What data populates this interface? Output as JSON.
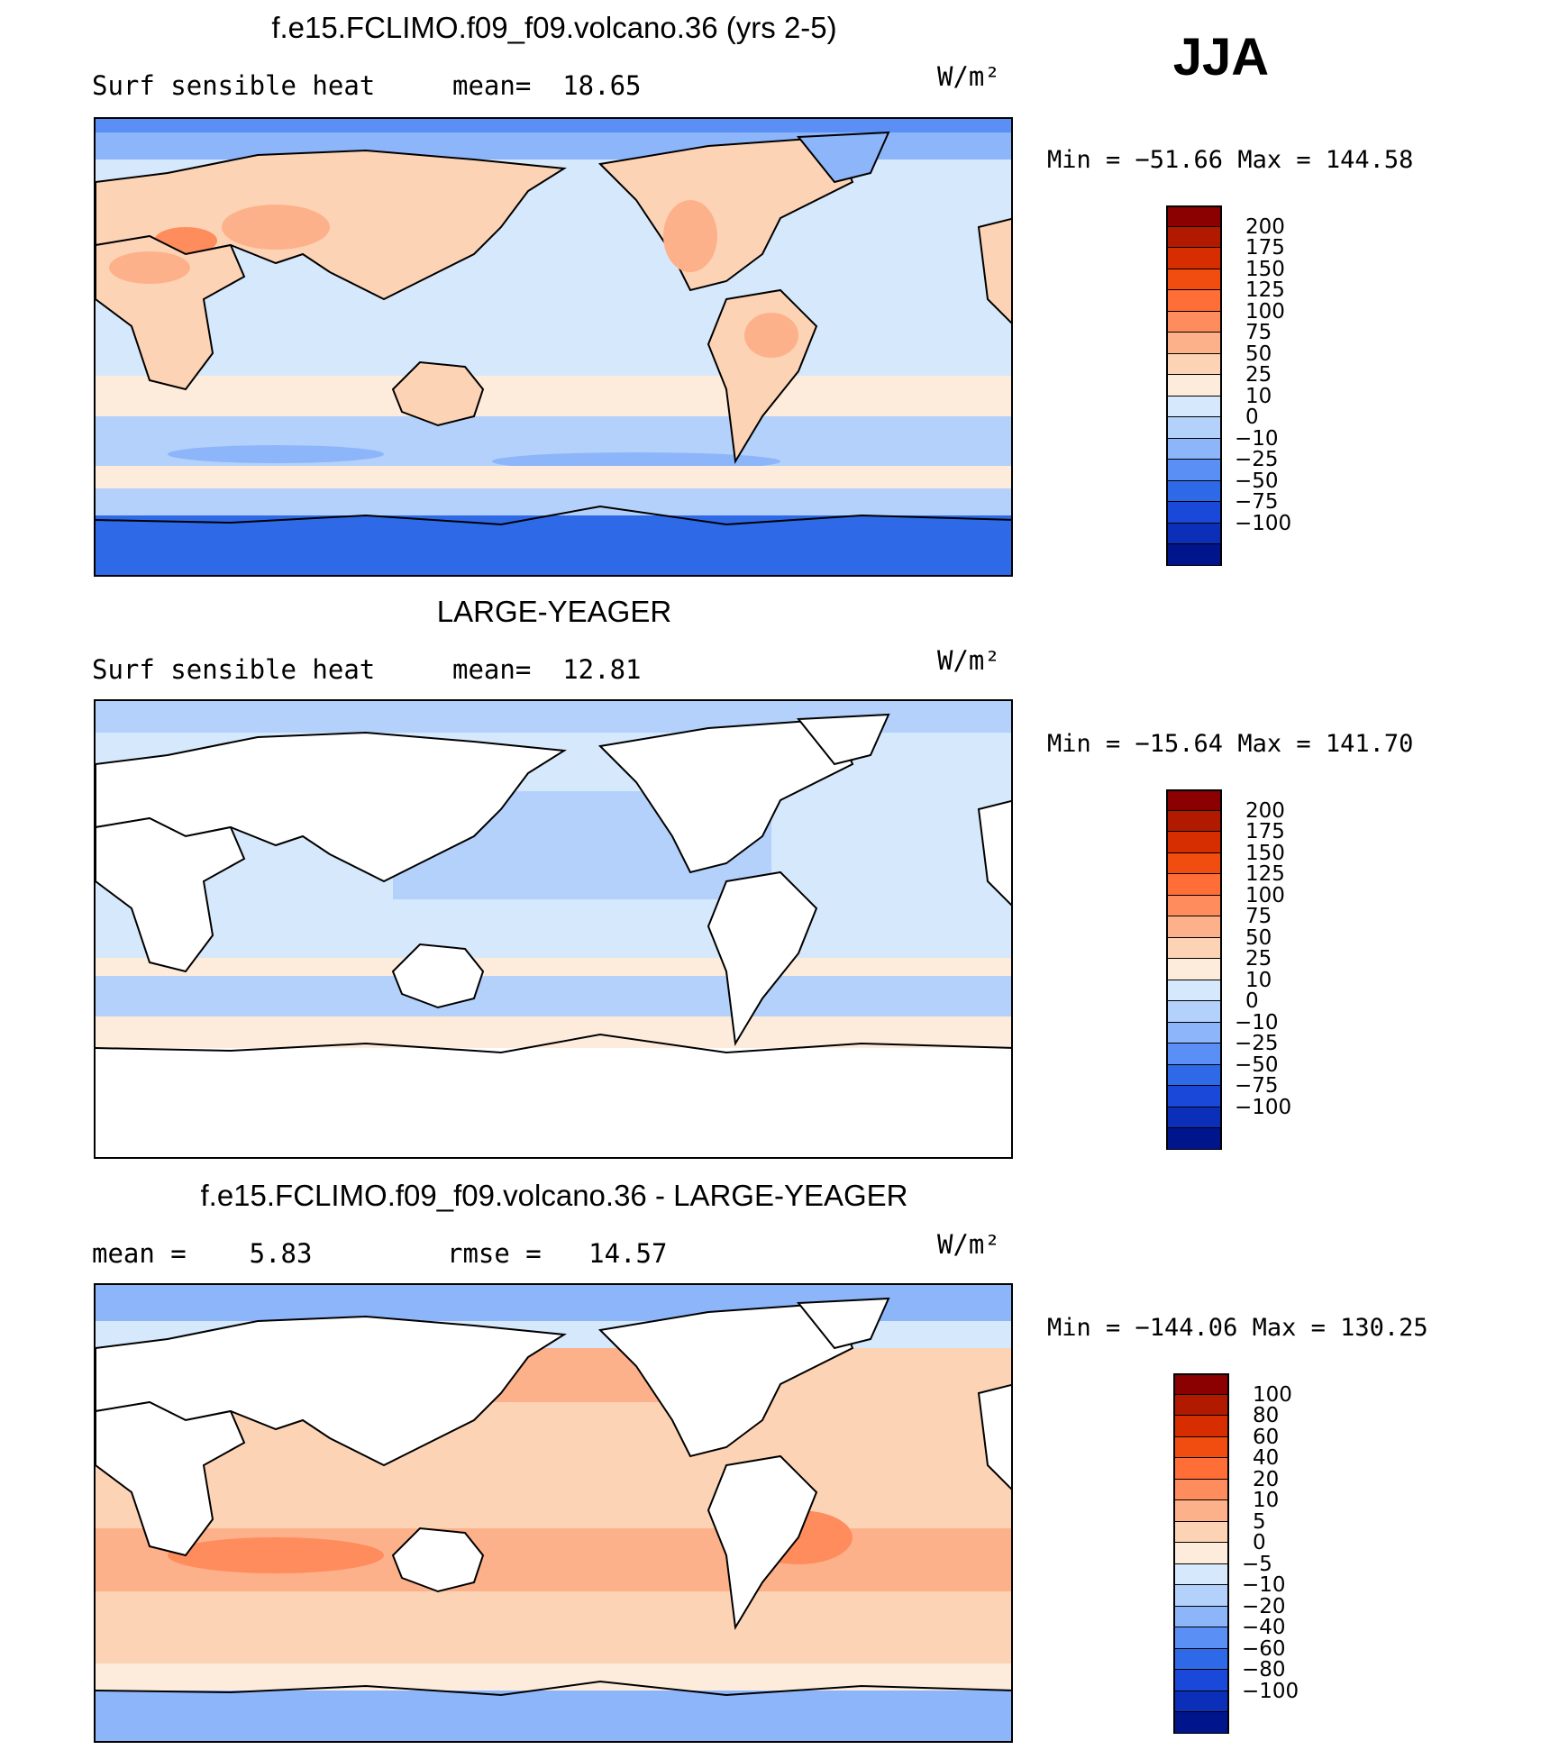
{
  "season": "JJA",
  "panels": [
    {
      "title": "f.e15.FCLIMO.f09_f09.volcano.36 (yrs 2-5)",
      "left_label": "Surf sensible heat",
      "mid_label": "mean=  18.65",
      "units": "W/m²",
      "minmax": "Min = −51.66 Max = 144.58",
      "colorbar": {
        "ticks": [
          "200",
          "175",
          "150",
          "125",
          "100",
          "75",
          "50",
          "25",
          "10",
          "0",
          "−10",
          "−25",
          "−50",
          "−75",
          "−100"
        ],
        "colors": [
          "#8b0000",
          "#b21a00",
          "#d62e00",
          "#f24d10",
          "#ff6e37",
          "#ff8c5c",
          "#fdb18a",
          "#fdd3b5",
          "#fdecdc",
          "#d6e8fb",
          "#b3d1fb",
          "#8db5fa",
          "#5a8ff5",
          "#2e6ae8",
          "#1a49d9",
          "#0b2fb8",
          "#00158c"
        ]
      }
    },
    {
      "title": "LARGE-YEAGER",
      "left_label": "Surf sensible heat",
      "mid_label": "mean=  12.81",
      "units": "W/m²",
      "minmax": "Min = −15.64 Max = 141.70",
      "colorbar": {
        "ticks": [
          "200",
          "175",
          "150",
          "125",
          "100",
          "75",
          "50",
          "25",
          "10",
          "0",
          "−10",
          "−25",
          "−50",
          "−75",
          "−100"
        ],
        "colors": [
          "#8b0000",
          "#b21a00",
          "#d62e00",
          "#f24d10",
          "#ff6e37",
          "#ff8c5c",
          "#fdb18a",
          "#fdd3b5",
          "#fdecdc",
          "#d6e8fb",
          "#b3d1fb",
          "#8db5fa",
          "#5a8ff5",
          "#2e6ae8",
          "#1a49d9",
          "#0b2fb8",
          "#00158c"
        ]
      }
    },
    {
      "title": "f.e15.FCLIMO.f09_f09.volcano.36 - LARGE-YEAGER",
      "left_label": "mean =    5.83",
      "mid_label": "rmse =   14.57",
      "units": "W/m²",
      "minmax": "Min = −144.06 Max = 130.25",
      "colorbar": {
        "ticks": [
          "100",
          "80",
          "60",
          "40",
          "20",
          "10",
          "5",
          "0",
          "−5",
          "−10",
          "−20",
          "−40",
          "−60",
          "−80",
          "−100"
        ],
        "colors": [
          "#8b0000",
          "#b21a00",
          "#d62e00",
          "#f24d10",
          "#ff6e37",
          "#ff8c5c",
          "#fdb18a",
          "#fdd3b5",
          "#fdecdc",
          "#d6e8fb",
          "#b3d1fb",
          "#8db5fa",
          "#5a8ff5",
          "#2e6ae8",
          "#1a49d9",
          "#0b2fb8",
          "#00158c"
        ]
      }
    }
  ]
}
